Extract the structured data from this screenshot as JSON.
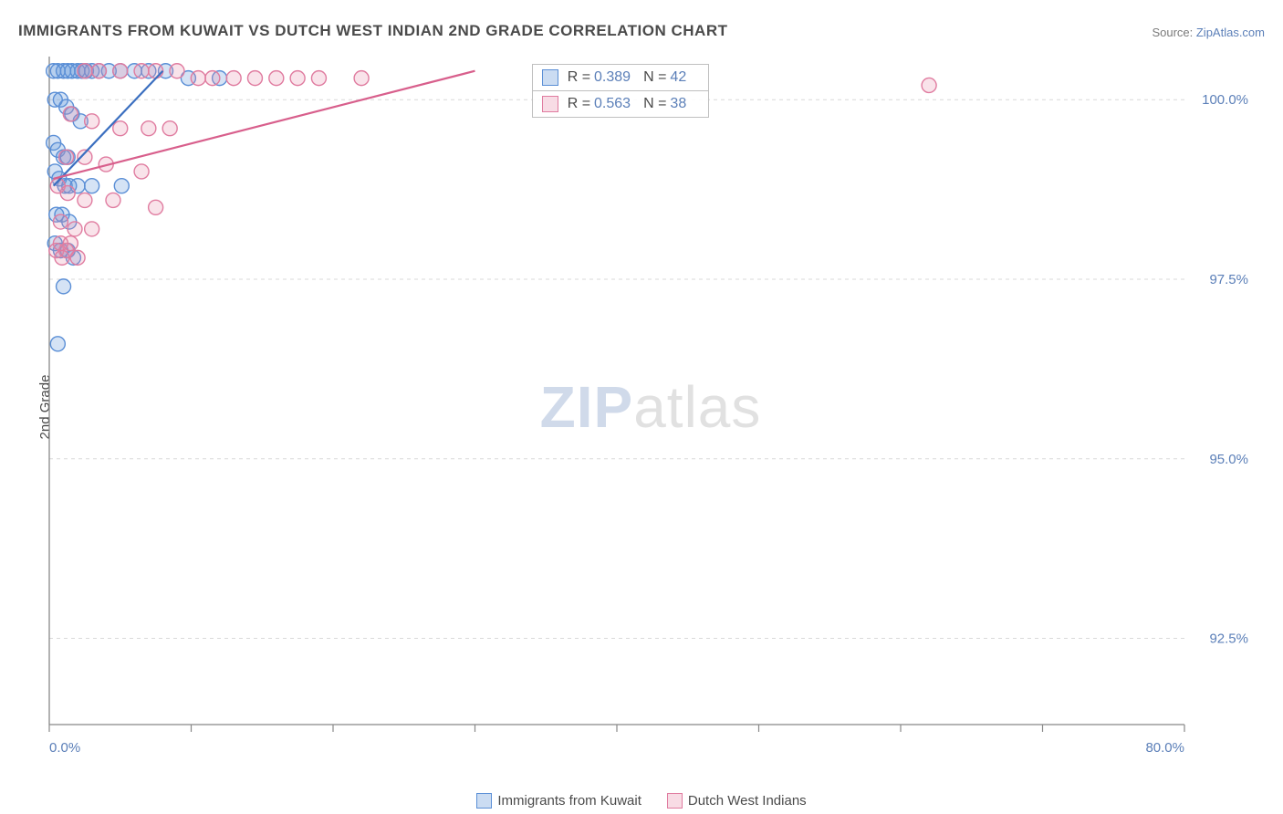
{
  "title": "IMMIGRANTS FROM KUWAIT VS DUTCH WEST INDIAN 2ND GRADE CORRELATION CHART",
  "source": {
    "label": "Source: ",
    "link": "ZipAtlas.com"
  },
  "ylabel": "2nd Grade",
  "watermark": {
    "zip": "ZIP",
    "atlas": "atlas"
  },
  "chart": {
    "type": "scatter",
    "background_color": "#ffffff",
    "grid_color": "#d9d9d9",
    "axis_color": "#888888",
    "tick_color": "#888888",
    "tick_length": 8,
    "xlim": [
      0,
      80
    ],
    "ylim": [
      91.3,
      100.6
    ],
    "x_ticks": [
      0,
      10,
      20,
      30,
      40,
      50,
      60,
      70,
      80
    ],
    "x_tick_labels": [
      "0.0%",
      "",
      "",
      "",
      "",
      "",
      "",
      "",
      "80.0%"
    ],
    "y_ticks": [
      92.5,
      95.0,
      97.5,
      100.0
    ],
    "y_tick_labels": [
      "92.5%",
      "95.0%",
      "97.5%",
      "100.0%"
    ],
    "label_fontsize": 15,
    "label_color": "#5b7fb8",
    "marker_radius": 8,
    "marker_stroke_width": 1.4,
    "trend_line_width": 2.2,
    "series": [
      {
        "name": "Immigrants from Kuwait",
        "color_fill": "rgba(105,155,219,0.28)",
        "color_stroke": "#5b8fd6",
        "trend_color": "#3b6fc0",
        "R": "0.389",
        "N": "42",
        "trend": {
          "x1": 0.3,
          "y1": 98.8,
          "x2": 8.0,
          "y2": 100.4
        },
        "points": [
          [
            0.3,
            100.4
          ],
          [
            0.6,
            100.4
          ],
          [
            1.0,
            100.4
          ],
          [
            1.3,
            100.4
          ],
          [
            1.6,
            100.4
          ],
          [
            2.0,
            100.4
          ],
          [
            2.3,
            100.4
          ],
          [
            2.6,
            100.4
          ],
          [
            3.0,
            100.4
          ],
          [
            3.5,
            100.4
          ],
          [
            4.2,
            100.4
          ],
          [
            5.0,
            100.4
          ],
          [
            6.0,
            100.4
          ],
          [
            7.0,
            100.4
          ],
          [
            8.2,
            100.4
          ],
          [
            9.8,
            100.3
          ],
          [
            12.0,
            100.3
          ],
          [
            0.4,
            100.0
          ],
          [
            0.8,
            100.0
          ],
          [
            1.2,
            99.9
          ],
          [
            1.6,
            99.8
          ],
          [
            2.2,
            99.7
          ],
          [
            0.3,
            99.4
          ],
          [
            0.6,
            99.3
          ],
          [
            1.0,
            99.2
          ],
          [
            1.3,
            99.2
          ],
          [
            0.4,
            99.0
          ],
          [
            0.7,
            98.9
          ],
          [
            1.1,
            98.8
          ],
          [
            1.4,
            98.8
          ],
          [
            2.0,
            98.8
          ],
          [
            3.0,
            98.8
          ],
          [
            5.1,
            98.8
          ],
          [
            0.5,
            98.4
          ],
          [
            0.9,
            98.4
          ],
          [
            1.4,
            98.3
          ],
          [
            0.4,
            98.0
          ],
          [
            0.8,
            97.9
          ],
          [
            1.3,
            97.9
          ],
          [
            1.7,
            97.8
          ],
          [
            1.0,
            97.4
          ],
          [
            0.6,
            96.6
          ]
        ]
      },
      {
        "name": "Dutch West Indians",
        "color_fill": "rgba(231,140,168,0.24)",
        "color_stroke": "#e07ca0",
        "trend_color": "#d85f8c",
        "R": "0.563",
        "N": "38",
        "trend": {
          "x1": 0.3,
          "y1": 98.9,
          "x2": 30.0,
          "y2": 100.4
        },
        "points": [
          [
            2.5,
            100.4
          ],
          [
            3.5,
            100.4
          ],
          [
            5.0,
            100.4
          ],
          [
            6.5,
            100.4
          ],
          [
            7.5,
            100.4
          ],
          [
            9.0,
            100.4
          ],
          [
            10.5,
            100.3
          ],
          [
            11.5,
            100.3
          ],
          [
            13.0,
            100.3
          ],
          [
            14.5,
            100.3
          ],
          [
            16.0,
            100.3
          ],
          [
            17.5,
            100.3
          ],
          [
            19.0,
            100.3
          ],
          [
            22.0,
            100.3
          ],
          [
            62.0,
            100.2
          ],
          [
            1.5,
            99.8
          ],
          [
            3.0,
            99.7
          ],
          [
            5.0,
            99.6
          ],
          [
            7.0,
            99.6
          ],
          [
            8.5,
            99.6
          ],
          [
            1.2,
            99.2
          ],
          [
            2.5,
            99.2
          ],
          [
            4.0,
            99.1
          ],
          [
            6.5,
            99.0
          ],
          [
            0.6,
            98.8
          ],
          [
            1.3,
            98.7
          ],
          [
            2.5,
            98.6
          ],
          [
            4.5,
            98.6
          ],
          [
            7.5,
            98.5
          ],
          [
            0.8,
            98.3
          ],
          [
            1.8,
            98.2
          ],
          [
            3.0,
            98.2
          ],
          [
            0.5,
            97.9
          ],
          [
            1.2,
            97.9
          ],
          [
            0.8,
            98.0
          ],
          [
            1.5,
            98.0
          ],
          [
            2.0,
            97.8
          ],
          [
            0.9,
            97.8
          ]
        ]
      }
    ]
  },
  "bottom_legend": {
    "series1": "Immigrants from Kuwait",
    "series2": "Dutch West Indians"
  },
  "stats_box": {
    "r_label": "R = ",
    "n_label": "N = "
  }
}
